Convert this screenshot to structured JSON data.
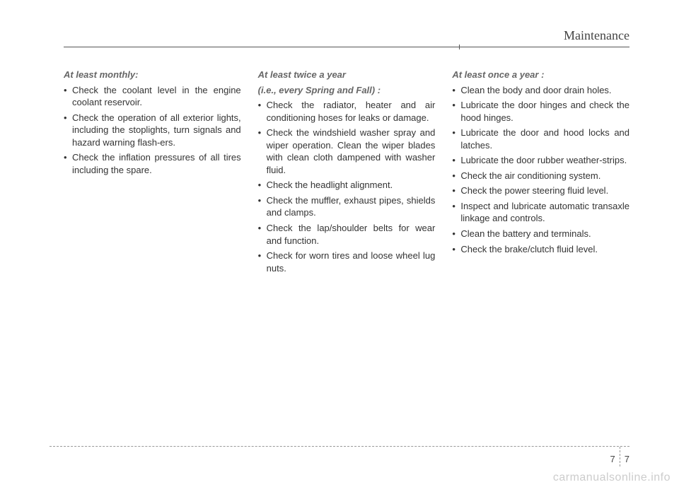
{
  "header": {
    "title": "Maintenance"
  },
  "columns": {
    "col1": {
      "title": "At least monthly:",
      "items": [
        "Check the coolant level in the engine coolant reservoir.",
        "Check the operation of all exterior lights, including the stoplights, turn signals and hazard warning flash-ers.",
        "Check the inflation pressures of all tires including the spare."
      ]
    },
    "col2": {
      "title1": "At least twice a year",
      "title2": "(i.e., every Spring and Fall) :",
      "items": [
        "Check the radiator, heater and air conditioning hoses for leaks or damage.",
        "Check the windshield washer spray and wiper operation. Clean the wiper blades with clean cloth dampened with washer fluid.",
        "Check the headlight alignment.",
        "Check the muffler, exhaust pipes, shields and clamps.",
        "Check the lap/shoulder belts for wear and function.",
        "Check for worn tires and loose wheel lug nuts."
      ]
    },
    "col3": {
      "title": "At least once a year :",
      "items": [
        "Clean the body and door drain holes.",
        "Lubricate the door hinges and check the hood hinges.",
        "Lubricate the door and hood locks and latches.",
        "Lubricate the door rubber weather-strips.",
        "Check the air conditioning system.",
        "Check the power steering fluid level.",
        "Inspect and lubricate automatic transaxle linkage and controls.",
        "Clean the battery and terminals.",
        "Check the brake/clutch fluid level."
      ]
    }
  },
  "footer": {
    "page_left": "7",
    "page_right": "7"
  },
  "watermark": "carmanualsonline.info"
}
